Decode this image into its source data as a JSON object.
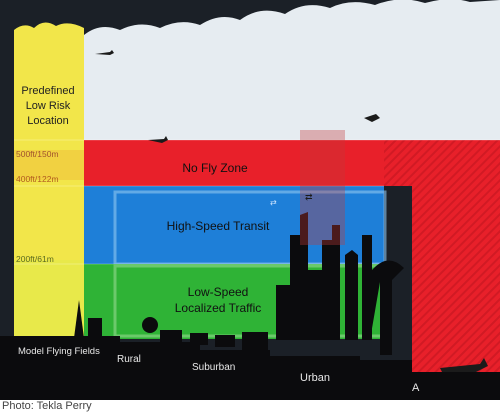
{
  "diagram": {
    "low_risk_label": [
      "Predefined",
      "Low Risk",
      "Location"
    ],
    "altitude_labels": {
      "high": "500ft/150m",
      "mid": "400ft/122m",
      "low": "200ft/61m"
    },
    "zones": {
      "no_fly": "No Fly Zone",
      "high_speed": "High-Speed Transit",
      "low_speed": [
        "Low-Speed",
        "Localized Traffic"
      ]
    },
    "areas": {
      "model": "Model Flying Fields",
      "rural": "Rural",
      "suburban": "Suburban",
      "urban": "Urban",
      "airport": "A"
    },
    "colors": {
      "yellow": "#f2e64a",
      "red": "#e8202a",
      "blue": "#1e7fd8",
      "green": "#2fb336",
      "sky": "#e6ecf1"
    }
  },
  "photo_credit": "Photo: Tekla Perry"
}
